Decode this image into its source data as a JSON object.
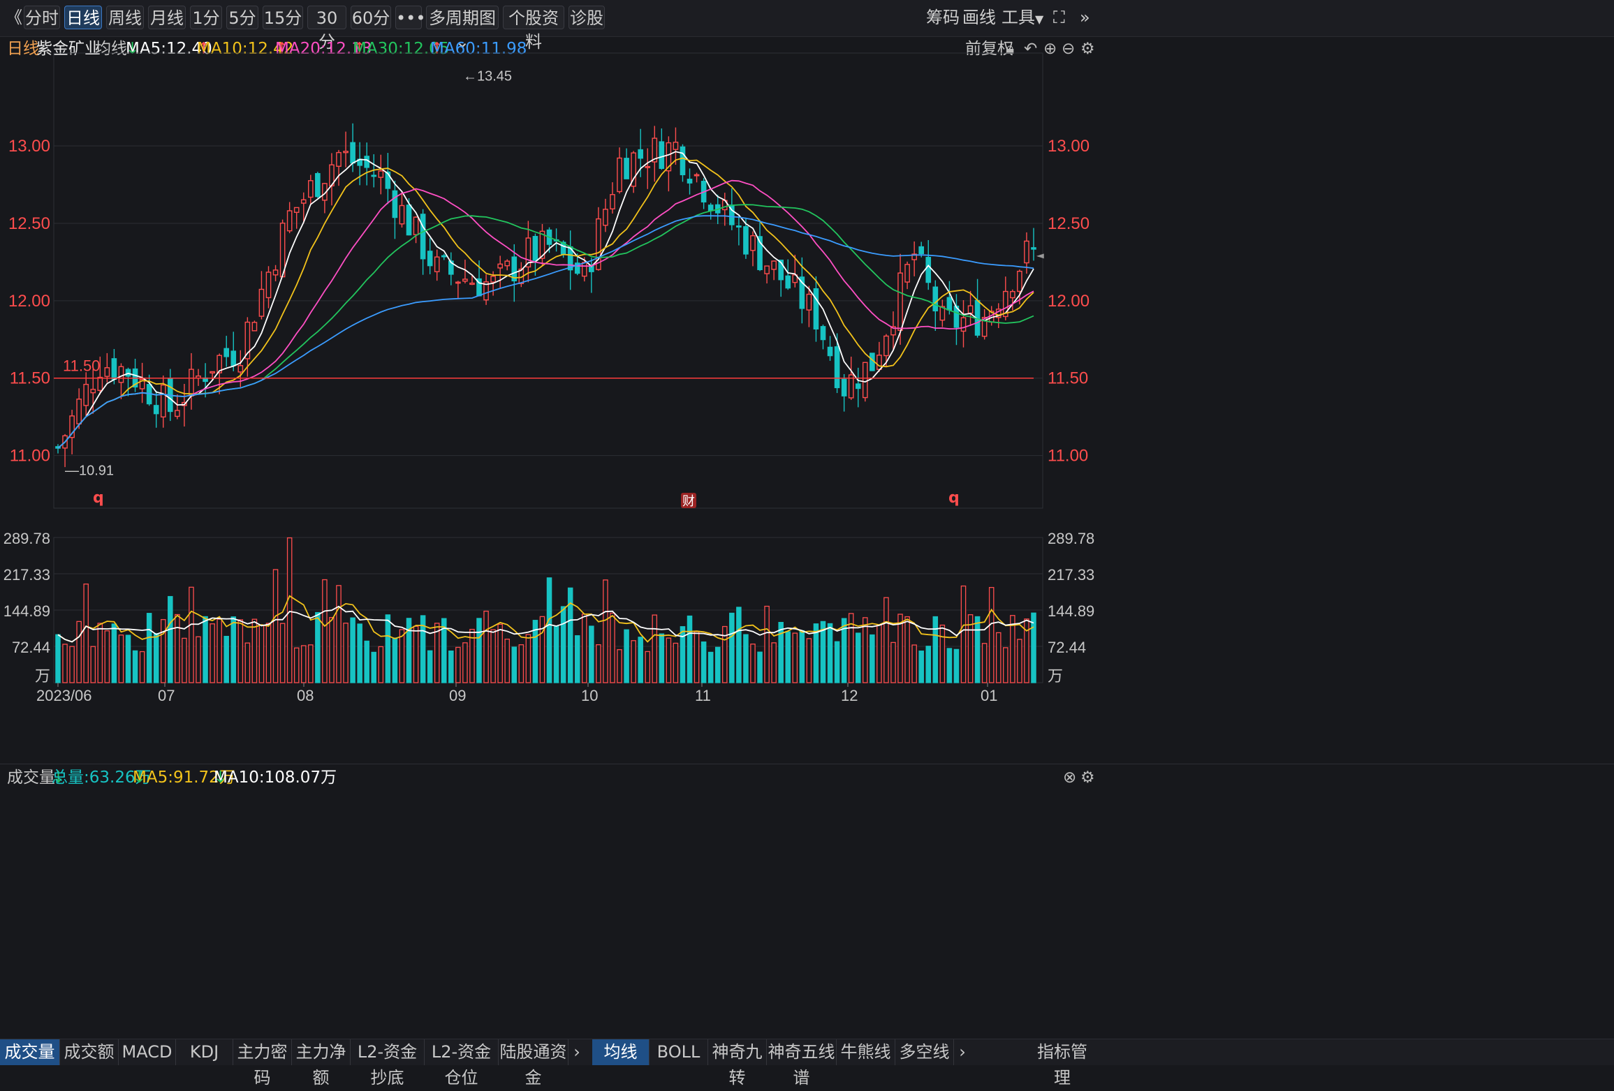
{
  "toolbar": {
    "back": "《",
    "periods": [
      "分时",
      "日线",
      "周线",
      "月线",
      "1分",
      "5分",
      "15分",
      "30分",
      "60分"
    ],
    "active_period": "日线",
    "more": "•••",
    "multi_period": "多周期图",
    "stock_info": "个股资料",
    "diagnose": "诊股",
    "right": [
      "筹码",
      "画线",
      "工具"
    ],
    "expand": "⛶",
    "collapse": "»"
  },
  "ma_bar": {
    "period_label": "日线",
    "stock_name": "紫金矿业",
    "ma_label": "均线",
    "ma5": "MA5:12.40",
    "ma10": "MA10:12.42",
    "ma20": "MA20:12.13",
    "ma30": "MA30:12.05",
    "ma60": "MA60:11.98",
    "adjust": "前复权"
  },
  "colors": {
    "up": "#ff4d4d",
    "down": "#17c3c3",
    "ma5": "#ffffff",
    "ma10": "#f2c21b",
    "ma20": "#ff4fc4",
    "ma30": "#22c55e",
    "ma60": "#3b9cff",
    "active_tab": "#1f4f86"
  },
  "price_axis": {
    "ticks": [
      "13.00",
      "12.50",
      "12.00",
      "11.50",
      "11.00"
    ],
    "high_label": "←13.45",
    "low_label": "—10.91",
    "ref_label": "11.50",
    "markers": [
      "q",
      "财",
      "q"
    ]
  },
  "volume_bar": {
    "title": "成交量",
    "total": "总量:63.26万",
    "ma5": "MA5:91.72万",
    "ma10": "MA10:108.07万"
  },
  "volume_axis": {
    "ticks": [
      "289.78",
      "217.33",
      "144.89",
      "72.44"
    ],
    "unit": "万"
  },
  "date_axis": [
    "2023/06",
    "07",
    "08",
    "09",
    "10",
    "11",
    "12",
    "01"
  ],
  "bottom_tabs_left": [
    "成交量",
    "成交额",
    "MACD",
    "KDJ",
    "主力密码",
    "主力净额",
    "L2-资金抄底",
    "L2-资金仓位",
    "陆股通资金"
  ],
  "bottom_tabs_right": [
    "均线",
    "BOLL",
    "神奇九转",
    "神奇五线谱",
    "牛熊线",
    "多空线"
  ],
  "bottom_right": "指标管理",
  "chart_data": {
    "type": "candlestick",
    "ylim": [
      10.66,
      13.6
    ],
    "vol_ylim": [
      0,
      289.78
    ],
    "reference_line": 11.5,
    "high": 13.45,
    "low": 10.91,
    "last_close": 12.3,
    "candle_count": 140
  }
}
